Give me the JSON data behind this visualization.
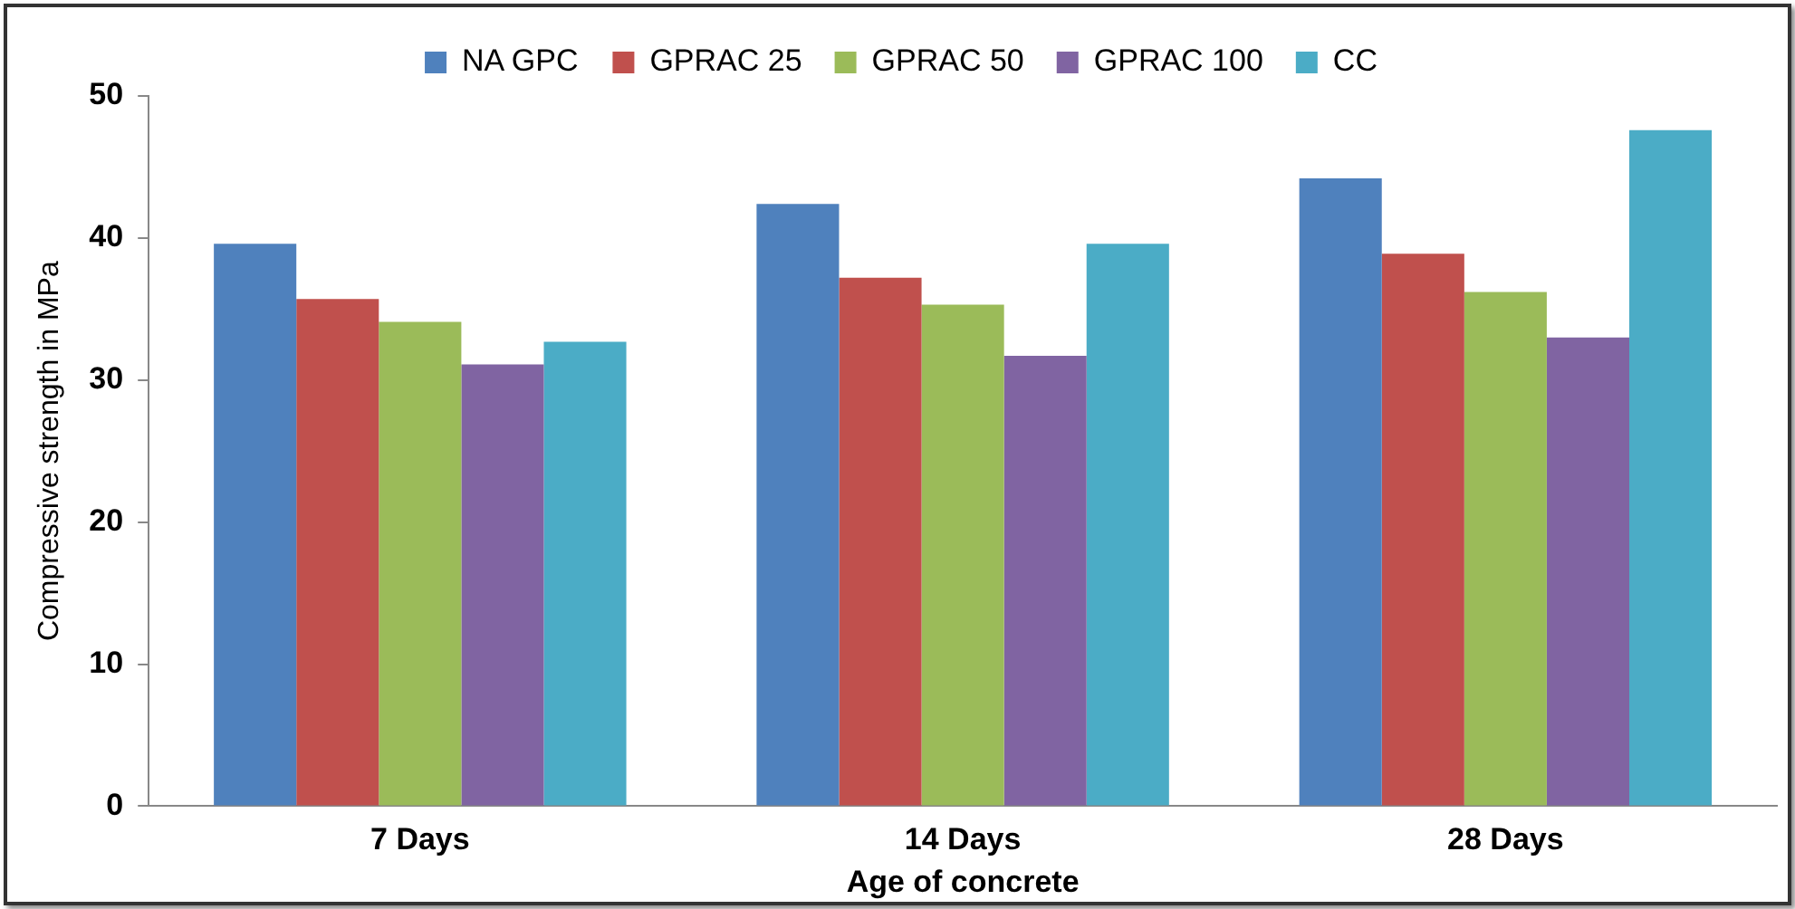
{
  "chart_data": {
    "type": "bar",
    "xlabel": "Age of concrete",
    "ylabel": "Compressive strength in MPa",
    "categories": [
      "7 Days",
      "14 Days",
      "28 Days"
    ],
    "series": [
      {
        "name": "NA GPC",
        "color": "#4f81bd",
        "values": [
          39.6,
          42.4,
          44.2
        ]
      },
      {
        "name": "GPRAC 25",
        "color": "#c0504d",
        "values": [
          35.7,
          37.2,
          38.9
        ]
      },
      {
        "name": "GPRAC 50",
        "color": "#9bbb59",
        "values": [
          34.1,
          35.3,
          36.2
        ]
      },
      {
        "name": "GPRAC 100",
        "color": "#8064a2",
        "values": [
          31.1,
          31.7,
          33.0
        ]
      },
      {
        "name": "CC",
        "color": "#4bacc6",
        "values": [
          32.7,
          39.6,
          47.6
        ]
      }
    ],
    "ylim": [
      0,
      50
    ],
    "yticks": [
      0,
      10,
      20,
      30,
      40,
      50
    ],
    "grid": false,
    "legend": "top"
  }
}
